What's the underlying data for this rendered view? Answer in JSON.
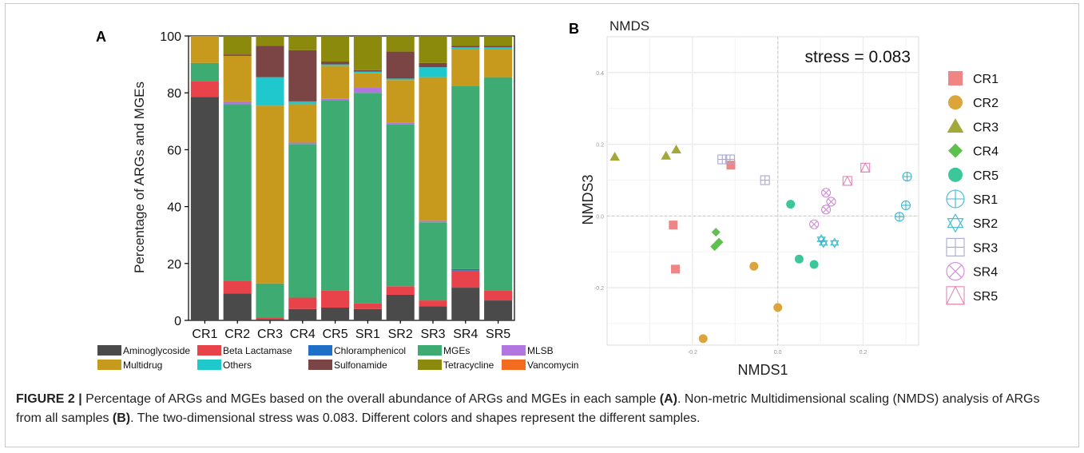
{
  "chart_data": [
    {
      "type": "bar",
      "stacked": true,
      "panel_label": "A",
      "ylabel": "Percentage of ARGs and MGEs",
      "ylim": [
        0,
        100
      ],
      "yticks": [
        "0",
        "20",
        "40",
        "60",
        "80",
        "100"
      ],
      "categories": [
        "CR1",
        "CR2",
        "CR3",
        "CR4",
        "CR5",
        "SR1",
        "SR2",
        "SR3",
        "SR4",
        "SR5"
      ],
      "series": [
        {
          "name": "Aminoglycoside",
          "color": "#4a4a4a",
          "values": [
            78.5,
            9.5,
            0.5,
            4.0,
            4.5,
            4.0,
            9.0,
            5.0,
            11.5,
            7.0
          ]
        },
        {
          "name": "Beta Lactamase",
          "color": "#e8434a",
          "values": [
            5.5,
            4.5,
            0.5,
            4.0,
            6.0,
            2.0,
            3.0,
            2.0,
            6.0,
            3.5
          ]
        },
        {
          "name": "Chloramphenicol",
          "color": "#1f6fc9",
          "values": [
            0,
            0,
            0,
            0,
            0,
            0,
            0,
            0,
            0.5,
            0
          ]
        },
        {
          "name": "MGEs",
          "color": "#3dab72",
          "values": [
            6.5,
            62.0,
            12.0,
            54.0,
            67.0,
            74.0,
            57.0,
            27.5,
            64.5,
            75.0
          ]
        },
        {
          "name": "MLSB",
          "color": "#b176e0",
          "values": [
            0,
            1.0,
            0,
            0.5,
            0.5,
            2.0,
            0.5,
            0.5,
            0,
            0
          ]
        },
        {
          "name": "Multidrug",
          "color": "#c79a1e",
          "values": [
            9.5,
            16.0,
            62.5,
            13.5,
            11.5,
            5.0,
            15.0,
            50.5,
            13.0,
            10.0
          ]
        },
        {
          "name": "Others",
          "color": "#1fc8cc",
          "values": [
            0,
            0,
            10.0,
            1.0,
            0.5,
            0.5,
            0.5,
            3.5,
            0.5,
            0.5
          ]
        },
        {
          "name": "Sulfonamide",
          "color": "#7a4544",
          "values": [
            0,
            0.5,
            11.0,
            18.0,
            1.0,
            0.5,
            9.5,
            1.5,
            0.5,
            0.5
          ]
        },
        {
          "name": "Tetracycline",
          "color": "#8c8a0c",
          "values": [
            0,
            6.5,
            3.5,
            5.0,
            9.0,
            12.0,
            5.5,
            9.5,
            3.5,
            3.5
          ]
        },
        {
          "name": "Vancomycin",
          "color": "#f26b1f",
          "values": [
            0,
            0,
            0,
            0,
            0,
            0,
            0,
            0,
            0,
            0
          ]
        }
      ]
    },
    {
      "type": "scatter",
      "panel_label": "B",
      "title": "NMDS",
      "annotation": "stress = 0.083",
      "xlabel": "NMDS1",
      "ylabel": "NMDS3",
      "xlim": [
        -0.4,
        0.33
      ],
      "ylim": [
        -0.36,
        0.5
      ],
      "xticks": [
        {
          "v": -0.2,
          "label": "-0.2"
        },
        {
          "v": 0.0,
          "label": "0.0"
        },
        {
          "v": 0.2,
          "label": "0.2"
        }
      ],
      "yticks": [
        {
          "v": -0.2,
          "label": "-0.2"
        },
        {
          "v": 0.0,
          "label": "0.0"
        },
        {
          "v": 0.2,
          "label": "0.2"
        },
        {
          "v": 0.4,
          "label": "0.4"
        }
      ],
      "legend_placement": "right",
      "series": [
        {
          "name": "CR1",
          "marker": "square",
          "color": "#f08585",
          "points": [
            [
              -0.245,
              -0.025
            ],
            [
              -0.24,
              -0.148
            ],
            [
              -0.11,
              0.142
            ]
          ]
        },
        {
          "name": "CR2",
          "marker": "circle",
          "color": "#dca53c",
          "points": [
            [
              -0.175,
              -0.342
            ],
            [
              -0.056,
              -0.14
            ],
            [
              -0.0,
              -0.255
            ]
          ]
        },
        {
          "name": "CR3",
          "marker": "triangle",
          "color": "#a3a83a",
          "points": [
            [
              -0.382,
              0.165
            ],
            [
              -0.262,
              0.168
            ],
            [
              -0.238,
              0.185
            ]
          ]
        },
        {
          "name": "CR4",
          "marker": "diamond",
          "color": "#5ec14d",
          "points": [
            [
              -0.145,
              -0.045
            ],
            [
              -0.148,
              -0.085
            ],
            [
              -0.138,
              -0.073
            ]
          ]
        },
        {
          "name": "CR5",
          "marker": "circle",
          "color": "#3cc79a",
          "points": [
            [
              0.03,
              0.033
            ],
            [
              0.05,
              -0.12
            ],
            [
              0.085,
              -0.135
            ]
          ]
        },
        {
          "name": "SR1",
          "marker": "circle-cross",
          "color": "#3fb8d0",
          "points": [
            [
              0.285,
              -0.002
            ],
            [
              0.3,
              0.03
            ],
            [
              0.303,
              0.11
            ]
          ]
        },
        {
          "name": "SR2",
          "marker": "star",
          "color": "#3fb8d0",
          "points": [
            [
              0.102,
              -0.065
            ],
            [
              0.107,
              -0.075
            ],
            [
              0.133,
              -0.075
            ]
          ]
        },
        {
          "name": "SR3",
          "marker": "square-cross",
          "color": "#a8a8d0",
          "points": [
            [
              -0.13,
              0.158
            ],
            [
              -0.112,
              0.158
            ],
            [
              -0.03,
              0.1
            ]
          ]
        },
        {
          "name": "SR4",
          "marker": "square-x",
          "color": "#d08ad8",
          "points": [
            [
              0.085,
              -0.023
            ],
            [
              0.113,
              0.065
            ],
            [
              0.113,
              0.018
            ],
            [
              0.125,
              0.04
            ]
          ]
        },
        {
          "name": "SR5",
          "marker": "square-triangle",
          "color": "#e088b8",
          "points": [
            [
              0.163,
              0.098
            ],
            [
              0.205,
              0.135
            ]
          ]
        }
      ]
    }
  ],
  "caption": {
    "label": "FIGURE 2 |",
    "part1": " Percentage of ARGs and MGEs based on the overall abundance of ARGs and MGEs in each sample ",
    "ref_a": "(A)",
    "part2": ". Non-metric Multidimensional scaling (NMDS) analysis of ARGs from all samples ",
    "ref_b": "(B)",
    "part3": ". The two-dimensional stress was 0.083. Different colors and shapes represent the different samples."
  }
}
